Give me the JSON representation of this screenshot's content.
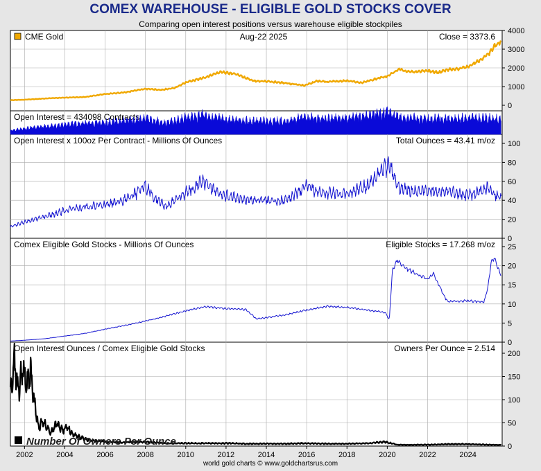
{
  "title": "COMEX WAREHOUSE - ELIGIBLE GOLD STOCKS COVER",
  "subtitle": "Comparing open interest positions versus warehouse eligible stockpiles",
  "footer": "world gold charts © www.goldchartsrus.com",
  "colors": {
    "gold": "#f0a800",
    "oi_fill": "#0a0ad8",
    "line": "#1414d0",
    "black": "#000000",
    "grid": "#aaaaaa"
  },
  "chart_data": {
    "x_axis": {
      "type": "year",
      "range": [
        2001.3,
        2025.7
      ],
      "tick_labels": [
        "2002",
        "2004",
        "2006",
        "2008",
        "2010",
        "2012",
        "2014",
        "2016",
        "2018",
        "2020",
        "2022",
        "2024"
      ]
    },
    "panels": [
      {
        "id": "gold_price",
        "type": "line",
        "legend": "CME Gold",
        "date_label": "Aug-22  2025",
        "right_label": "Close = 3373.6",
        "ylim": [
          0,
          4000
        ],
        "yticks": [
          "0",
          "1000",
          "2000",
          "3000",
          "4000"
        ],
        "x": [
          2001.3,
          2002,
          2003,
          2004,
          2005,
          2006,
          2007,
          2008,
          2008.8,
          2009.5,
          2010,
          2011,
          2011.7,
          2012.5,
          2013,
          2013.5,
          2014,
          2015,
          2015.9,
          2016.5,
          2017,
          2018,
          2018.7,
          2019,
          2019.7,
          2020,
          2020.6,
          2021,
          2021.5,
          2022,
          2022.5,
          2023,
          2023.5,
          2024,
          2024.5,
          2025,
          2025.3,
          2025.65
        ],
        "y": [
          270,
          300,
          360,
          410,
          440,
          600,
          690,
          880,
          820,
          950,
          1220,
          1500,
          1780,
          1660,
          1450,
          1280,
          1290,
          1180,
          1060,
          1300,
          1250,
          1320,
          1200,
          1290,
          1480,
          1550,
          1950,
          1790,
          1800,
          1850,
          1750,
          1900,
          1950,
          2050,
          2350,
          2700,
          3150,
          3373.6
        ]
      },
      {
        "id": "open_interest",
        "type": "area",
        "label": "Open Interest = 434098 Contracts",
        "ylim": [
          0,
          700000
        ],
        "x": [
          2001.3,
          2002,
          2003,
          2004,
          2005,
          2006,
          2007,
          2008,
          2009,
          2010,
          2011,
          2012,
          2013,
          2014,
          2015,
          2016,
          2017,
          2018,
          2019,
          2020,
          2020.5,
          2021,
          2022,
          2023,
          2024,
          2025,
          2025.65
        ],
        "y": [
          120000,
          170000,
          230000,
          290000,
          330000,
          350000,
          400000,
          470000,
          330000,
          480000,
          560000,
          440000,
          400000,
          390000,
          400000,
          500000,
          470000,
          470000,
          550000,
          640000,
          500000,
          480000,
          460000,
          460000,
          470000,
          470000,
          434098
        ]
      },
      {
        "id": "oi_ounces",
        "type": "line",
        "label": "Open Interest x 100oz Per Contract - Millions Of Ounces",
        "right_label": "Total Ounces = 43.41 m/oz",
        "ylim": [
          0,
          100
        ],
        "yticks": [
          "0",
          "20",
          "40",
          "60",
          "80",
          "100"
        ],
        "x": [
          2001.3,
          2002,
          2003,
          2004,
          2005,
          2006,
          2007,
          2007.6,
          2008,
          2008.4,
          2009,
          2010,
          2010.9,
          2011.5,
          2012,
          2013,
          2014,
          2015,
          2016,
          2016.5,
          2017,
          2018,
          2019,
          2019.8,
          2020.1,
          2020.5,
          2021,
          2022,
          2023,
          2024,
          2025,
          2025.3,
          2025.65
        ],
        "y": [
          12,
          17,
          23,
          29,
          33,
          35,
          41,
          48,
          55,
          45,
          33,
          48,
          60,
          50,
          45,
          41,
          40,
          40,
          55,
          48,
          47,
          48,
          55,
          72,
          78,
          55,
          50,
          50,
          50,
          45,
          53,
          46,
          43.41
        ]
      },
      {
        "id": "eligible_stocks",
        "type": "line",
        "label": "Comex Eligible Gold Stocks - Millions Of Ounces",
        "right_label": "Eligible Stocks = 17.268 m/oz",
        "ylim": [
          0,
          25
        ],
        "yticks": [
          "0",
          "5",
          "10",
          "15",
          "20",
          "25"
        ],
        "x": [
          2001.3,
          2002,
          2003,
          2004,
          2005,
          2006,
          2007,
          2008,
          2009,
          2010,
          2011,
          2012,
          2013,
          2013.5,
          2014,
          2015,
          2016,
          2017,
          2018,
          2019,
          2019.9,
          2020.1,
          2020.25,
          2020.5,
          2021,
          2022,
          2022.3,
          2022.8,
          2023,
          2024,
          2024.8,
          2025,
          2025.15,
          2025.3,
          2025.65
        ],
        "y": [
          0.3,
          0.5,
          0.9,
          1.6,
          2.3,
          3.4,
          4.4,
          5.5,
          6.8,
          8.2,
          9.3,
          8.8,
          8.5,
          6.1,
          6.4,
          7.2,
          8.4,
          9.4,
          9.1,
          8.4,
          7.8,
          5.8,
          18.5,
          21.5,
          19,
          16.5,
          17.8,
          12.3,
          10.6,
          10.8,
          10.5,
          14.5,
          21,
          22,
          17.268
        ]
      },
      {
        "id": "owners_per_ounce",
        "type": "line",
        "label": "Open Interest Ounces / Comex Eligible Gold Stocks",
        "right_label": "Owners Per Ounce = 2.514",
        "legend": "Number Of Owners Per Ounce",
        "ylim": [
          0,
          200
        ],
        "yticks": [
          "0",
          "50",
          "100",
          "150",
          "200"
        ],
        "x": [
          2001.3,
          2001.5,
          2001.7,
          2001.9,
          2002.1,
          2002.3,
          2002.5,
          2002.7,
          2002.9,
          2003.1,
          2003.3,
          2003.6,
          2003.9,
          2004.1,
          2004.4,
          2004.7,
          2005,
          2005.5,
          2006,
          2007,
          2008,
          2009,
          2010,
          2011,
          2012,
          2013,
          2014,
          2015,
          2016,
          2017,
          2018,
          2019,
          2019.9,
          2020.1,
          2020.5,
          2021,
          2022,
          2023,
          2024,
          2025,
          2025.65
        ],
        "y": [
          110,
          180,
          120,
          170,
          130,
          160,
          90,
          40,
          55,
          42,
          28,
          48,
          34,
          42,
          25,
          20,
          15,
          11,
          9,
          8,
          9,
          6,
          6,
          6,
          6,
          5,
          5,
          5,
          6,
          5,
          5,
          6,
          9,
          7,
          3,
          2.7,
          3,
          4.2,
          4.3,
          3,
          2.514
        ]
      }
    ]
  }
}
